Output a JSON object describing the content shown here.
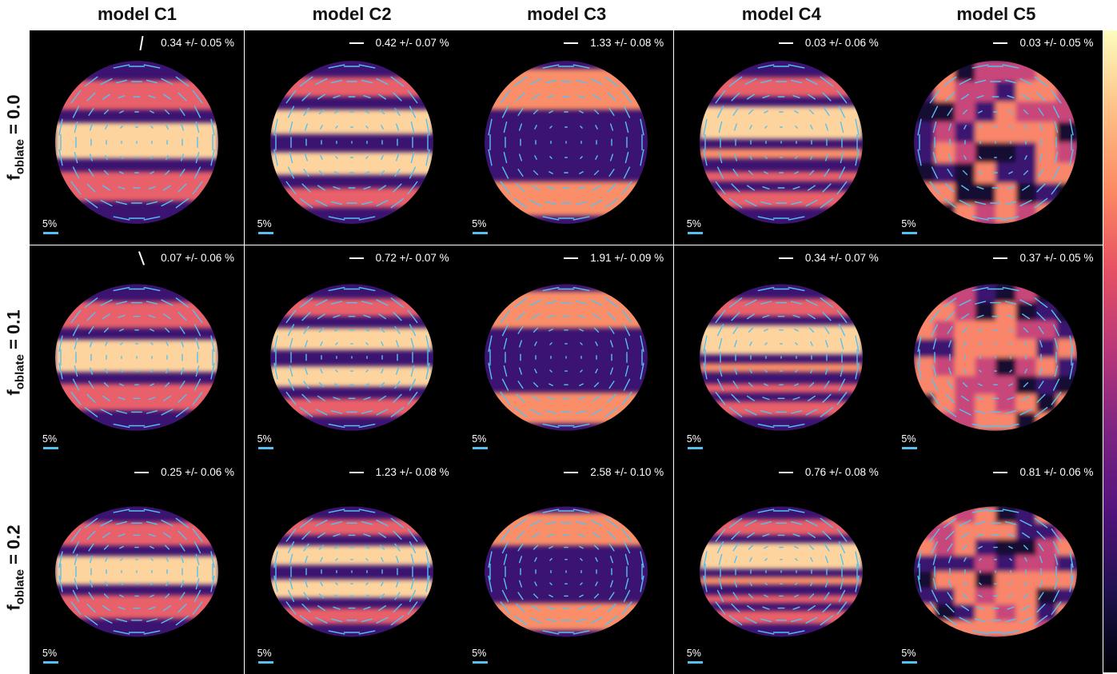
{
  "columns": [
    "model C1",
    "model C2",
    "model C3",
    "model C4",
    "model C5"
  ],
  "rows": [
    {
      "label_main": "f",
      "label_sub": "oblate",
      "label_value": " = 0.0"
    },
    {
      "label_main": "f",
      "label_sub": "oblate",
      "label_value": " = 0.1"
    },
    {
      "label_main": "f",
      "label_sub": "oblate",
      "label_value": " = 0.2"
    }
  ],
  "panels": [
    [
      {
        "pol": "0.34 +/- 0.05 %",
        "angle_deg": 80
      },
      {
        "pol": "0.42 +/- 0.07 %",
        "angle_deg": 0
      },
      {
        "pol": "1.33 +/- 0.08 %",
        "angle_deg": 0
      },
      {
        "pol": "0.03 +/- 0.06 %",
        "angle_deg": 0
      },
      {
        "pol": "0.03 +/- 0.05 %",
        "angle_deg": 0
      }
    ],
    [
      {
        "pol": "0.07 +/- 0.06 %",
        "angle_deg": -70
      },
      {
        "pol": "0.72 +/- 0.07 %",
        "angle_deg": 0
      },
      {
        "pol": "1.91 +/- 0.09 %",
        "angle_deg": 0
      },
      {
        "pol": "0.34 +/- 0.07 %",
        "angle_deg": 0
      },
      {
        "pol": "0.37 +/- 0.05 %",
        "angle_deg": 0
      }
    ],
    [
      {
        "pol": "0.25 +/- 0.06 %",
        "angle_deg": 0
      },
      {
        "pol": "1.23 +/- 0.08 %",
        "angle_deg": 0
      },
      {
        "pol": "2.58 +/- 0.10 %",
        "angle_deg": 0
      },
      {
        "pol": "0.76 +/- 0.08 %",
        "angle_deg": 0
      },
      {
        "pol": "0.81 +/- 0.06 %",
        "angle_deg": 0
      }
    ]
  ],
  "scale_label": "5%",
  "colors": {
    "background": "#000000",
    "vector": "#55c1f2",
    "colormap": "magma"
  }
}
